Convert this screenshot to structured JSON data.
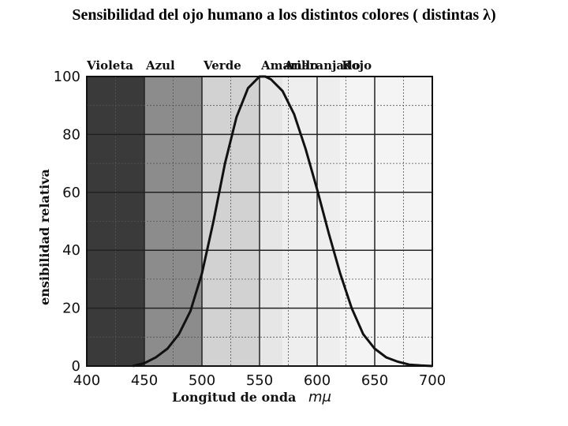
{
  "title": "Sensibilidad del ojo humano a los distintos colores ( distintas λ)",
  "chart_data": {
    "type": "line",
    "xlabel": "Longitud de onda",
    "xunit": "mμ",
    "ylabel": "ensibilidad relativa",
    "xlim": [
      400,
      700
    ],
    "ylim": [
      0,
      100
    ],
    "x_ticks": [
      400,
      450,
      500,
      550,
      600,
      650,
      700
    ],
    "y_ticks": [
      0,
      20,
      40,
      60,
      80,
      100
    ],
    "grid": true,
    "color_bands": [
      {
        "label": "Violeta",
        "from": 400,
        "to": 450,
        "shade": "#3a3a3a"
      },
      {
        "label": "Azul",
        "from": 450,
        "to": 500,
        "shade": "#8c8c8c"
      },
      {
        "label": "Verde",
        "from": 500,
        "to": 550,
        "shade": "#d2d2d2"
      },
      {
        "label": "Amarillo",
        "from": 550,
        "to": 570,
        "shade": "#e6e6e6"
      },
      {
        "label": "Anaranjado",
        "from": 570,
        "to": 620,
        "shade": "#eeeeee"
      },
      {
        "label": "Rojo",
        "from": 620,
        "to": 700,
        "shade": "#f4f4f4"
      }
    ],
    "series": [
      {
        "x": [
          440,
          450,
          460,
          470,
          480,
          490,
          500,
          510,
          520,
          530,
          540,
          550,
          555,
          560,
          570,
          580,
          590,
          600,
          610,
          620,
          630,
          640,
          650,
          660,
          670,
          680,
          690,
          700
        ],
        "values": [
          0,
          1,
          3,
          6,
          11,
          19,
          32,
          50,
          70,
          86,
          96,
          100,
          100,
          99,
          95,
          87,
          75,
          61,
          46,
          32,
          20,
          11,
          6,
          3,
          1.5,
          0.5,
          0.2,
          0
        ]
      }
    ]
  }
}
